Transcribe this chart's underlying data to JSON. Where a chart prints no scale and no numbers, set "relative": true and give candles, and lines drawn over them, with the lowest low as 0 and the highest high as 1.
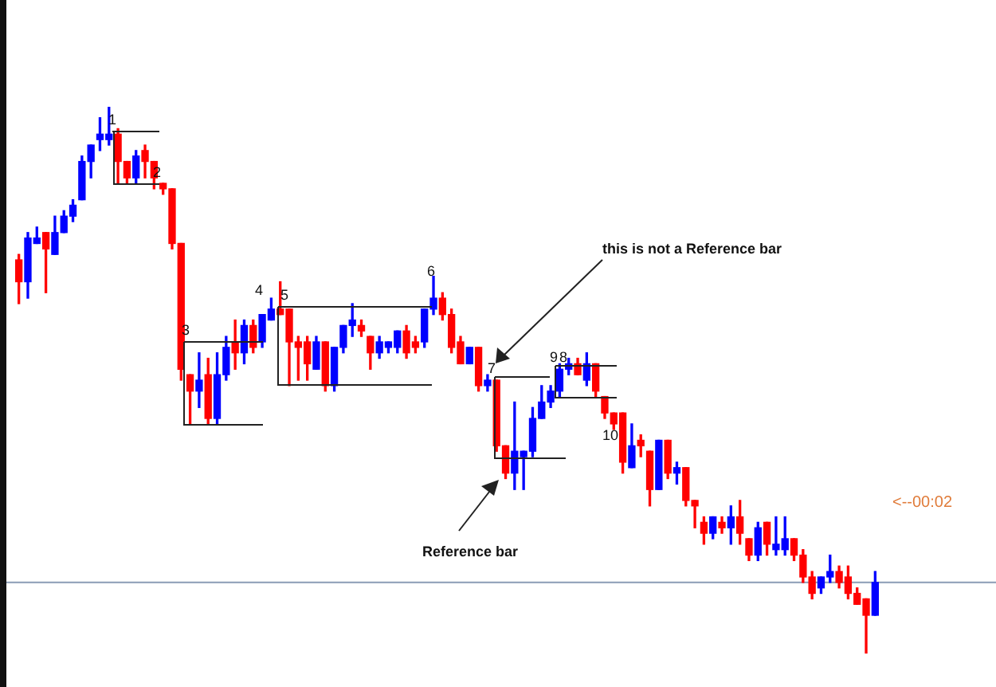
{
  "chart_data": {
    "type": "candlestick",
    "relative": true,
    "categories": [
      null,
      null,
      null,
      null,
      null,
      null,
      null,
      null,
      null,
      null,
      null,
      null,
      null,
      null,
      null,
      null,
      null,
      null,
      null,
      null,
      null,
      null,
      null,
      null,
      null,
      null,
      null,
      null,
      null,
      null,
      null,
      null,
      null,
      null,
      null,
      null,
      null,
      null,
      null,
      null,
      null,
      null,
      null,
      null,
      null,
      null,
      null,
      null,
      null,
      null,
      null,
      null,
      null,
      null,
      null,
      null,
      null,
      null,
      null,
      null,
      null,
      null,
      null,
      null,
      null,
      null,
      null,
      null,
      null,
      null,
      null,
      null,
      null,
      null,
      null,
      null,
      null,
      null,
      null,
      null,
      null,
      null,
      null,
      null,
      null,
      null,
      null,
      null,
      null,
      null,
      null,
      null,
      null,
      null,
      null,
      null
    ],
    "ohlc": [
      [
        0.72,
        0.73,
        0.64,
        0.68
      ],
      [
        0.68,
        0.77,
        0.65,
        0.76
      ],
      [
        0.75,
        0.78,
        0.75,
        0.76
      ],
      [
        0.77,
        0.77,
        0.66,
        0.74
      ],
      [
        0.73,
        0.8,
        0.73,
        0.77
      ],
      [
        0.77,
        0.81,
        0.77,
        0.8
      ],
      [
        0.8,
        0.83,
        0.79,
        0.82
      ],
      [
        0.83,
        0.91,
        0.83,
        0.9
      ],
      [
        0.9,
        0.93,
        0.87,
        0.93
      ],
      [
        0.94,
        0.98,
        0.92,
        0.95
      ],
      [
        0.94,
        1,
        0.93,
        0.95
      ],
      [
        0.95,
        0.96,
        0.86,
        0.9
      ],
      [
        0.9,
        0.9,
        0.86,
        0.87
      ],
      [
        0.87,
        0.92,
        0.86,
        0.91
      ],
      [
        0.92,
        0.93,
        0.87,
        0.9
      ],
      [
        0.9,
        0.9,
        0.85,
        0.87
      ],
      [
        0.86,
        0.86,
        0.84,
        0.85
      ],
      [
        0.85,
        0.85,
        0.74,
        0.75
      ],
      [
        0.75,
        0.75,
        0.5,
        0.52
      ],
      [
        0.51,
        0.51,
        0.42,
        0.48
      ],
      [
        0.48,
        0.55,
        0.45,
        0.5
      ],
      [
        0.51,
        0.54,
        0.42,
        0.43
      ],
      [
        0.43,
        0.55,
        0.42,
        0.51
      ],
      [
        0.51,
        0.58,
        0.5,
        0.56
      ],
      [
        0.57,
        0.61,
        0.52,
        0.55
      ],
      [
        0.55,
        0.61,
        0.53,
        0.6
      ],
      [
        0.6,
        0.61,
        0.55,
        0.56
      ],
      [
        0.57,
        0.62,
        0.56,
        0.62
      ],
      [
        0.61,
        0.65,
        0.61,
        0.63
      ],
      [
        0.63,
        0.68,
        0.62,
        0.62
      ],
      [
        0.63,
        0.63,
        0.49,
        0.57
      ],
      [
        0.57,
        0.58,
        0.5,
        0.56
      ],
      [
        0.57,
        0.58,
        0.5,
        0.53
      ],
      [
        0.52,
        0.58,
        0.52,
        0.57
      ],
      [
        0.57,
        0.57,
        0.48,
        0.49
      ],
      [
        0.49,
        0.56,
        0.48,
        0.56
      ],
      [
        0.56,
        0.6,
        0.55,
        0.6
      ],
      [
        0.6,
        0.64,
        0.58,
        0.61
      ],
      [
        0.6,
        0.61,
        0.58,
        0.59
      ],
      [
        0.58,
        0.58,
        0.52,
        0.55
      ],
      [
        0.55,
        0.58,
        0.54,
        0.57
      ],
      [
        0.56,
        0.57,
        0.55,
        0.57
      ],
      [
        0.56,
        0.59,
        0.55,
        0.59
      ],
      [
        0.59,
        0.6,
        0.54,
        0.55
      ],
      [
        0.57,
        0.58,
        0.55,
        0.56
      ],
      [
        0.57,
        0.63,
        0.56,
        0.63
      ],
      [
        0.63,
        0.69,
        0.62,
        0.65
      ],
      [
        0.65,
        0.66,
        0.61,
        0.62
      ],
      [
        0.62,
        0.63,
        0.55,
        0.56
      ],
      [
        0.57,
        0.58,
        0.53,
        0.53
      ],
      [
        0.53,
        0.56,
        0.53,
        0.56
      ],
      [
        0.56,
        0.56,
        0.48,
        0.49
      ],
      [
        0.49,
        0.51,
        0.48,
        0.5
      ],
      [
        0.5,
        0.5,
        0.37,
        0.38
      ],
      [
        0.38,
        0.38,
        0.32,
        0.33
      ],
      [
        0.33,
        0.46,
        0.3,
        0.37
      ],
      [
        0.36,
        0.37,
        0.3,
        0.37
      ],
      [
        0.37,
        0.45,
        0.36,
        0.43
      ],
      [
        0.43,
        0.49,
        0.43,
        0.46
      ],
      [
        0.46,
        0.49,
        0.45,
        0.48
      ],
      [
        0.48,
        0.53,
        0.47,
        0.52
      ],
      [
        0.52,
        0.54,
        0.51,
        0.53
      ],
      [
        0.53,
        0.54,
        0.51,
        0.51
      ],
      [
        0.5,
        0.55,
        0.49,
        0.53
      ],
      [
        0.53,
        0.53,
        0.47,
        0.48
      ],
      [
        0.47,
        0.47,
        0.43,
        0.44
      ],
      [
        0.44,
        0.44,
        0.41,
        0.42
      ],
      [
        0.44,
        0.44,
        0.33,
        0.35
      ],
      [
        0.34,
        0.42,
        0.34,
        0.38
      ],
      [
        0.39,
        0.4,
        0.36,
        0.38
      ],
      [
        0.37,
        0.37,
        0.27,
        0.3
      ],
      [
        0.3,
        0.39,
        0.3,
        0.39
      ],
      [
        0.39,
        0.39,
        0.32,
        0.33
      ],
      [
        0.33,
        0.35,
        0.31,
        0.34
      ],
      [
        0.34,
        0.34,
        0.27,
        0.28
      ],
      [
        0.28,
        0.28,
        0.23,
        0.27
      ],
      [
        0.24,
        0.25,
        0.2,
        0.22
      ],
      [
        0.22,
        0.25,
        0.21,
        0.25
      ],
      [
        0.24,
        0.25,
        0.22,
        0.23
      ],
      [
        0.23,
        0.27,
        0.2,
        0.25
      ],
      [
        0.25,
        0.28,
        0.2,
        0.22
      ],
      [
        0.21,
        0.21,
        0.17,
        0.18
      ],
      [
        0.18,
        0.24,
        0.17,
        0.23
      ],
      [
        0.24,
        0.24,
        0.18,
        0.2
      ],
      [
        0.19,
        0.25,
        0.18,
        0.2
      ],
      [
        0.19,
        0.25,
        0.18,
        0.21
      ],
      [
        0.21,
        0.21,
        0.17,
        0.18
      ],
      [
        0.18,
        0.19,
        0.13,
        0.14
      ],
      [
        0.14,
        0.15,
        0.1,
        0.11
      ],
      [
        0.12,
        0.14,
        0.11,
        0.14
      ],
      [
        0.14,
        0.18,
        0.13,
        0.15
      ],
      [
        0.15,
        0.16,
        0.12,
        0.13
      ],
      [
        0.14,
        0.16,
        0.1,
        0.11
      ],
      [
        0.11,
        0.12,
        0.09,
        0.09
      ],
      [
        0.1,
        0.1,
        0,
        0.07
      ],
      [
        0.07,
        0.15,
        0.07,
        0.13
      ]
    ],
    "colors": [
      "#ff0000",
      "#0000ff",
      "#0000ff",
      "#ff0000",
      "#0000ff",
      "#0000ff",
      "#0000ff",
      "#0000ff",
      "#0000ff",
      "#0000ff",
      "#0000ff",
      "#ff0000",
      "#ff0000",
      "#0000ff",
      "#ff0000",
      "#ff0000",
      "#ff0000",
      "#ff0000",
      "#ff0000",
      "#ff0000",
      "#0000ff",
      "#ff0000",
      "#0000ff",
      "#0000ff",
      "#ff0000",
      "#0000ff",
      "#ff0000",
      "#0000ff",
      "#0000ff",
      "#ff0000",
      "#ff0000",
      "#ff0000",
      "#ff0000",
      "#0000ff",
      "#ff0000",
      "#0000ff",
      "#0000ff",
      "#0000ff",
      "#ff0000",
      "#ff0000",
      "#0000ff",
      "#0000ff",
      "#0000ff",
      "#ff0000",
      "#ff0000",
      "#0000ff",
      "#0000ff",
      "#ff0000",
      "#ff0000",
      "#ff0000",
      "#0000ff",
      "#ff0000",
      "#0000ff",
      "#ff0000",
      "#ff0000",
      "#0000ff",
      "#0000ff",
      "#0000ff",
      "#0000ff",
      "#0000ff",
      "#0000ff",
      "#0000ff",
      "#ff0000",
      "#0000ff",
      "#ff0000",
      "#ff0000",
      "#ff0000",
      "#ff0000",
      "#0000ff",
      "#ff0000",
      "#ff0000",
      "#0000ff",
      "#ff0000",
      "#0000ff",
      "#ff0000",
      "#ff0000",
      "#ff0000",
      "#0000ff",
      "#ff0000",
      "#0000ff",
      "#ff0000",
      "#ff0000",
      "#0000ff",
      "#ff0000",
      "#0000ff",
      "#0000ff",
      "#ff0000",
      "#ff0000",
      "#ff0000",
      "#0000ff",
      "#0000ff",
      "#ff0000",
      "#ff0000",
      "#ff0000",
      "#ff0000",
      "#0000ff"
    ],
    "ref_lines": [
      {
        "axis": "y",
        "value": 0.13,
        "color": "#8a9bb5"
      }
    ],
    "annotations": [
      "1",
      "2",
      "3",
      "4",
      "5",
      "6",
      "7",
      "9",
      "8",
      "10",
      "this is not a Reference  bar",
      "Reference bar",
      "<--00:02"
    ]
  }
}
